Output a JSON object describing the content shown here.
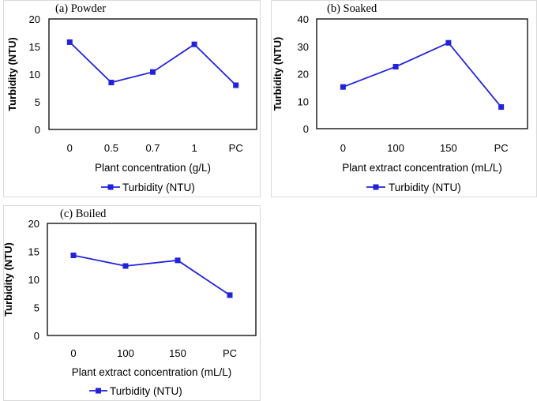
{
  "chart_data": [
    {
      "type": "line",
      "title": "(a) Powder",
      "xlabel": "Plant concentration (g/L)",
      "ylabel": "Turbidity (NTU)",
      "categories": [
        "0",
        "0.5",
        "0.7",
        "1",
        "PC"
      ],
      "ylim": [
        0,
        20
      ],
      "yticks": [
        0,
        5,
        10,
        15,
        20
      ],
      "series": [
        {
          "name": "Turbidity (NTU)",
          "values": [
            15.8,
            8.5,
            10.4,
            15.4,
            8.0
          ]
        }
      ],
      "legend": "bottom",
      "grid": false
    },
    {
      "type": "line",
      "title": "(b) Soaked",
      "xlabel": "Plant extract concentration (mL/L)",
      "ylabel": "Turbidity (NTU)",
      "categories": [
        "0",
        "100",
        "150",
        "PC"
      ],
      "ylim": [
        0,
        40
      ],
      "yticks": [
        0,
        10,
        20,
        30,
        40
      ],
      "series": [
        {
          "name": "Turbidity (NTU)",
          "values": [
            15.2,
            22.6,
            31.3,
            7.9
          ]
        }
      ],
      "legend": "bottom",
      "grid": false
    },
    {
      "type": "line",
      "title": "(c) Boiled",
      "xlabel": "Plant extract concentration (mL/L)",
      "ylabel": "Turbidity (NTU)",
      "categories": [
        "0",
        "100",
        "150",
        "PC"
      ],
      "ylim": [
        0,
        20
      ],
      "yticks": [
        0,
        5,
        10,
        15,
        20
      ],
      "series": [
        {
          "name": "Turbidity (NTU)",
          "values": [
            14.3,
            12.4,
            13.4,
            7.2
          ]
        }
      ],
      "legend": "bottom",
      "grid": false
    }
  ],
  "colors": {
    "series": "#2222dd",
    "axis": "#000000",
    "frame": "#000000"
  }
}
